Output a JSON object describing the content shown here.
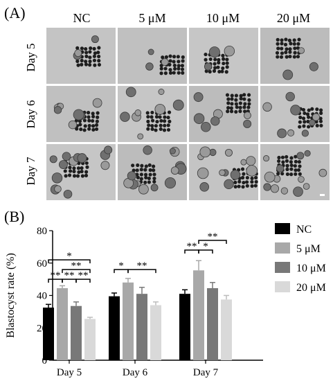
{
  "panel_a": {
    "label": "(A)",
    "columns": [
      "NC",
      "5 μM",
      "10 μM",
      "20 μM"
    ],
    "rows": [
      "Day 5",
      "Day 6",
      "Day 7"
    ]
  },
  "panel_b": {
    "label": "(B)"
  },
  "chart_data": {
    "type": "bar",
    "categories": [
      "Day 5",
      "Day 6",
      "Day 7"
    ],
    "series": [
      {
        "name": "NC",
        "values": [
          32.5,
          39.5,
          41
        ],
        "errors": [
          2,
          2,
          2.5
        ],
        "color": "#000000"
      },
      {
        "name": "5 μM",
        "values": [
          44.5,
          48,
          55.5
        ],
        "errors": [
          1.5,
          2.5,
          6
        ],
        "color": "#a8a8a8"
      },
      {
        "name": "10 μM",
        "values": [
          33.5,
          41,
          44.5
        ],
        "errors": [
          2.5,
          4,
          3.5
        ],
        "color": "#787878"
      },
      {
        "name": "20 μM",
        "values": [
          25.5,
          34,
          37.5
        ],
        "errors": [
          1,
          2,
          2.5
        ],
        "color": "#d9d9d9"
      }
    ],
    "ylabel": "Blastocyst rate (%)",
    "ylim": [
      0,
      80
    ],
    "yticks": [
      0,
      20,
      40,
      60,
      80
    ],
    "legend_position": "right",
    "grid": false,
    "significance": [
      {
        "group": 0,
        "from": 0,
        "to": 1,
        "label": "**",
        "y": 50
      },
      {
        "group": 0,
        "from": 1,
        "to": 2,
        "label": "**",
        "y": 50
      },
      {
        "group": 0,
        "from": 2,
        "to": 3,
        "label": "**",
        "y": 50
      },
      {
        "group": 0,
        "from": 1,
        "to": 3,
        "label": "**",
        "y": 56
      },
      {
        "group": 0,
        "from": 0,
        "to": 3,
        "label": "*",
        "y": 62
      },
      {
        "group": 1,
        "from": 0,
        "to": 1,
        "label": "*",
        "y": 56
      },
      {
        "group": 1,
        "from": 1,
        "to": 3,
        "label": "**",
        "y": 56
      },
      {
        "group": 2,
        "from": 0,
        "to": 1,
        "label": "**",
        "y": 68
      },
      {
        "group": 2,
        "from": 1,
        "to": 2,
        "label": "*",
        "y": 68
      },
      {
        "group": 2,
        "from": 1,
        "to": 3,
        "label": "**",
        "y": 74
      }
    ]
  }
}
